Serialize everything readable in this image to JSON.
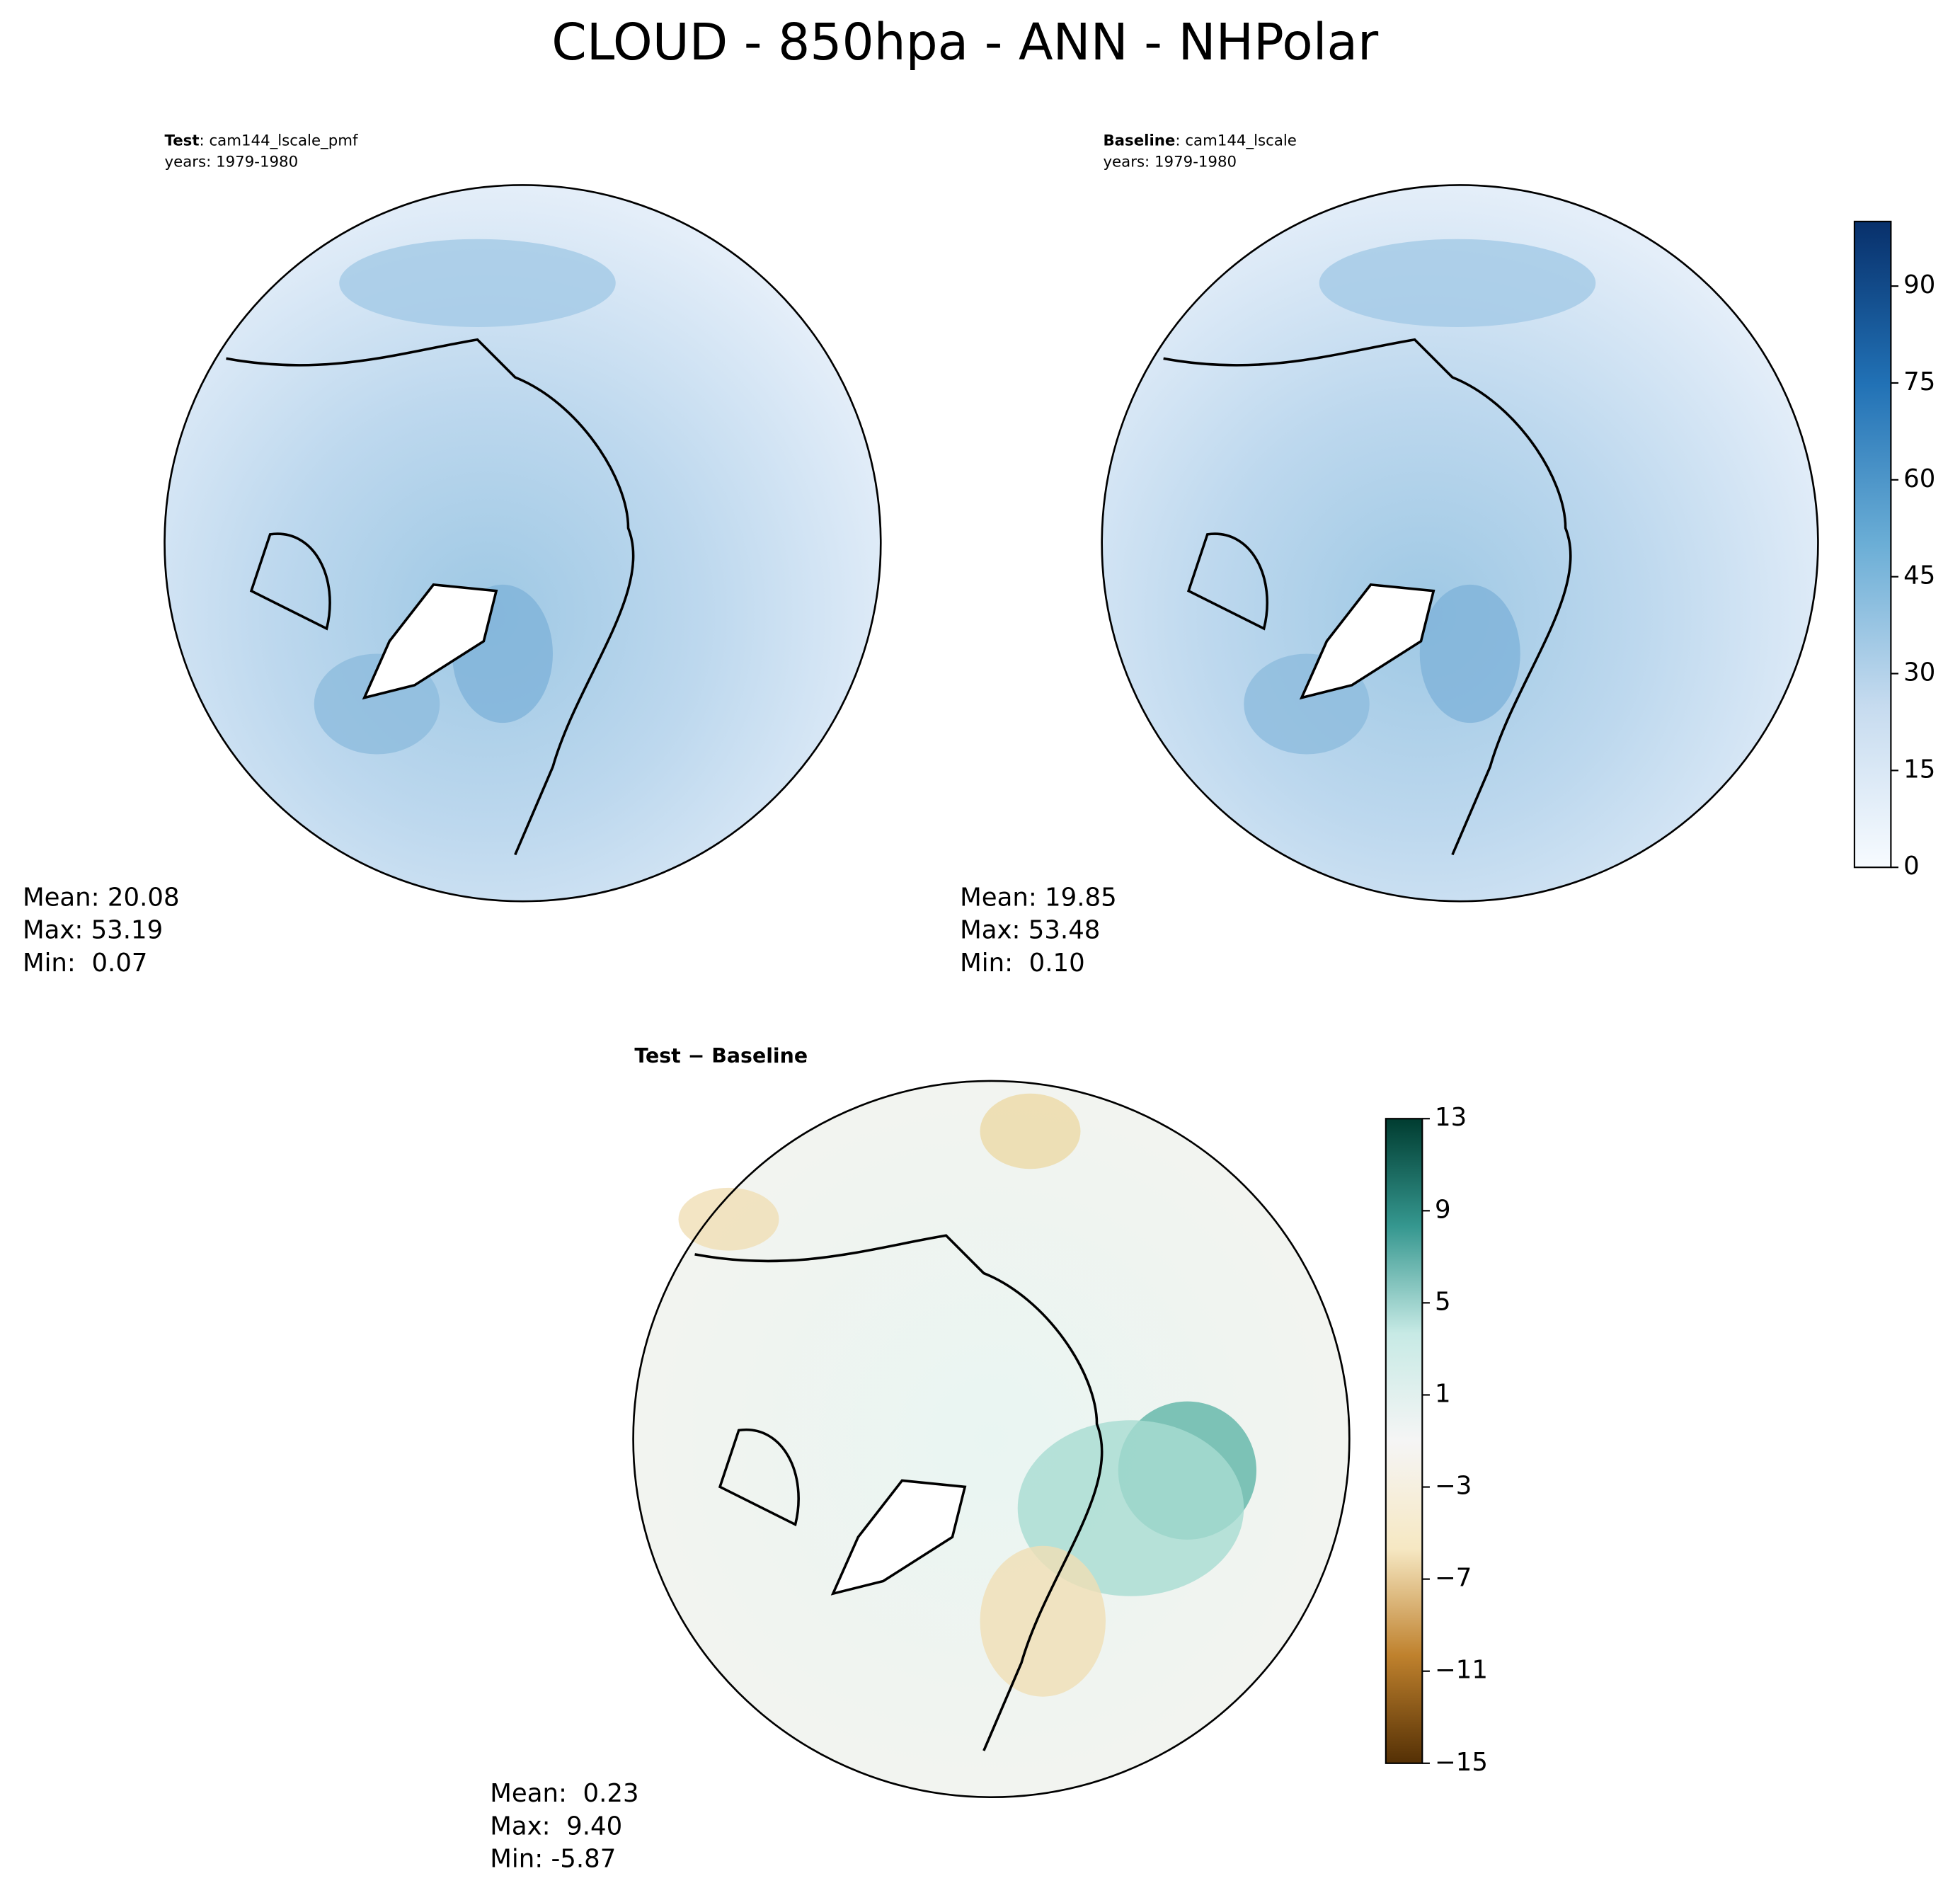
{
  "title": "CLOUD - 850hpa - ANN - NHPolar",
  "panels": [
    {
      "label_bold": "Test",
      "label": ": cam144_lscale_pmf",
      "years": "years: 1979-1980",
      "stats": [
        "Mean: 20.08",
        "Max: 53.19",
        "Min:  0.07"
      ]
    },
    {
      "label_bold": "Baseline",
      "label": ": cam144_lscale",
      "years": "years: 1979-1980",
      "stats": [
        "Mean: 19.85",
        "Max: 53.48",
        "Min:  0.10"
      ]
    },
    {
      "label_bold": "Test − Baseline",
      "stats": [
        "Mean:  0.23",
        "Max:  9.40",
        "Min: -5.87"
      ]
    }
  ],
  "colorbars": [
    {
      "lim": [
        0,
        100
      ],
      "ticks": [
        0,
        15,
        30,
        45,
        60,
        75,
        90
      ],
      "colors": [
        "#f7fbff",
        "#c6dbef",
        "#6baed6",
        "#2171b5",
        "#08306b"
      ]
    },
    {
      "lim": [
        -15,
        13
      ],
      "ticks": [
        {
          "value": -15,
          "label": "−15"
        },
        {
          "value": -11,
          "label": "−11"
        },
        {
          "value": -7,
          "label": "−7"
        },
        {
          "value": -3,
          "label": "−3"
        },
        1,
        5,
        9,
        13
      ],
      "colors": [
        "#543005",
        "#bf812d",
        "#f6e8c3",
        "#f5f5f5",
        "#c7eae5",
        "#35978f",
        "#003c30"
      ]
    }
  ]
}
